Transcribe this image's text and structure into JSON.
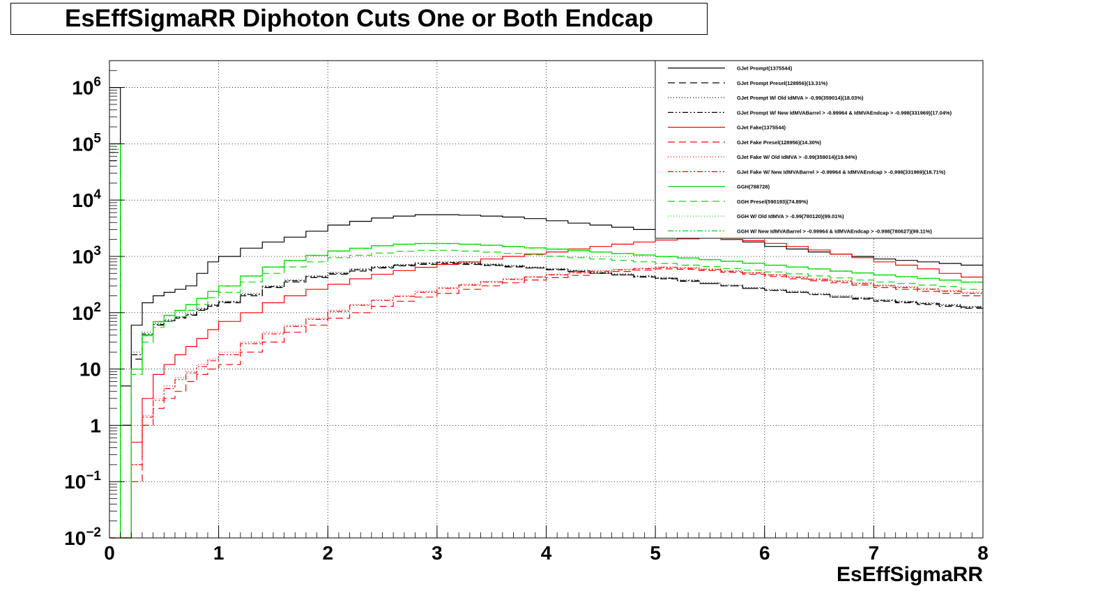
{
  "chart_data": {
    "type": "line",
    "title": "EsEffSigmaRR Diphoton Cuts One or Both Endcap",
    "xlabel": "EsEffSigmaRR",
    "ylabel": "",
    "xlim": [
      0,
      8
    ],
    "ylim": [
      0.01,
      3000000
    ],
    "yscale": "log",
    "grid": true,
    "legend_position": "top-right",
    "x_ticks": [
      "0",
      "1",
      "2",
      "3",
      "4",
      "5",
      "6",
      "7",
      "8"
    ],
    "y_ticks": [
      {
        "value": 1000000,
        "base": "10",
        "exp": "6"
      },
      {
        "value": 100000,
        "base": "10",
        "exp": "5"
      },
      {
        "value": 10000,
        "base": "10",
        "exp": "4"
      },
      {
        "value": 1000,
        "base": "10",
        "exp": "3"
      },
      {
        "value": 100,
        "base": "10",
        "exp": "2"
      },
      {
        "value": 10,
        "base": "10",
        "exp": ""
      },
      {
        "value": 1,
        "base": "1",
        "exp": ""
      },
      {
        "value": 0.1,
        "base": "10",
        "exp": "−1"
      },
      {
        "value": 0.01,
        "base": "10",
        "exp": "−2"
      }
    ],
    "x": [
      0.0,
      0.1,
      0.2,
      0.3,
      0.4,
      0.5,
      0.6,
      0.7,
      0.8,
      0.9,
      1.0,
      1.2,
      1.4,
      1.6,
      1.8,
      2.0,
      2.2,
      2.4,
      2.6,
      2.8,
      3.0,
      3.2,
      3.4,
      3.6,
      3.8,
      4.0,
      4.2,
      4.4,
      4.6,
      4.8,
      5.0,
      5.2,
      5.4,
      5.6,
      5.8,
      6.0,
      6.2,
      6.4,
      6.6,
      6.8,
      7.0,
      7.2,
      7.4,
      7.6,
      7.8,
      8.0
    ],
    "series": [
      {
        "name": "GJet Prompt(1375544)",
        "color": "#000000",
        "dash": "solid",
        "values": [
          1000000,
          5,
          60,
          150,
          200,
          230,
          260,
          300,
          500,
          800,
          1000,
          1400,
          1800,
          2200,
          2800,
          3600,
          4200,
          4800,
          5200,
          5500,
          5500,
          5400,
          5200,
          5000,
          4700,
          4300,
          3900,
          3600,
          3300,
          3000,
          2800,
          2500,
          2200,
          2000,
          1800,
          1500,
          1350,
          1200,
          1100,
          1000,
          900,
          850,
          800,
          750,
          700,
          650
        ]
      },
      {
        "name": "GJet Prompt Presel(128956)(13.31%)",
        "color": "#000000",
        "dash": "10,6",
        "values": [
          50000,
          1,
          15,
          40,
          60,
          70,
          80,
          90,
          110,
          130,
          150,
          200,
          280,
          350,
          420,
          480,
          550,
          620,
          680,
          720,
          750,
          720,
          690,
          650,
          620,
          580,
          540,
          500,
          470,
          430,
          400,
          360,
          330,
          300,
          270,
          250,
          230,
          210,
          190,
          175,
          160,
          150,
          140,
          130,
          120,
          110
        ]
      },
      {
        "name": "GJet Prompt W/ Old IdMVA > -0.99(359014)(18.03%)",
        "color": "#000000",
        "dash": "1,3",
        "values": [
          80000,
          1,
          20,
          45,
          65,
          75,
          85,
          95,
          120,
          140,
          160,
          220,
          300,
          380,
          450,
          520,
          600,
          660,
          720,
          770,
          800,
          770,
          730,
          690,
          650,
          610,
          570,
          530,
          490,
          450,
          420,
          380,
          340,
          310,
          280,
          260,
          240,
          220,
          200,
          185,
          170,
          160,
          150,
          140,
          130,
          120
        ]
      },
      {
        "name": "GJet Prompt W/ New IdMVABarrel > -0.99964 & IdMVAEndcap > -0.998(331969)(17.04%)",
        "color": "#000000",
        "dash": "8,3,2,3,2,3",
        "values": [
          70000,
          1,
          18,
          42,
          62,
          72,
          82,
          92,
          115,
          135,
          155,
          210,
          290,
          370,
          440,
          500,
          580,
          640,
          700,
          750,
          780,
          750,
          710,
          670,
          630,
          590,
          550,
          510,
          470,
          440,
          410,
          370,
          330,
          300,
          270,
          250,
          230,
          210,
          190,
          180,
          165,
          155,
          145,
          135,
          125,
          115
        ]
      },
      {
        "name": "GJet Fake(1375544)",
        "color": "#ff0000",
        "dash": "solid",
        "values": [
          0.01,
          0.01,
          0.5,
          3,
          8,
          12,
          18,
          25,
          35,
          50,
          70,
          100,
          150,
          200,
          260,
          320,
          400,
          480,
          560,
          640,
          720,
          800,
          900,
          1000,
          1100,
          1200,
          1350,
          1500,
          1650,
          1800,
          1950,
          2050,
          2100,
          2000,
          1900,
          1700,
          1500,
          1300,
          1100,
          950,
          800,
          700,
          600,
          500,
          430,
          380
        ]
      },
      {
        "name": "GJet Fake Presel(128956)(14.30%)",
        "color": "#ff0000",
        "dash": "10,6",
        "values": [
          0.01,
          0.01,
          0.1,
          1,
          2,
          3,
          4,
          6,
          8,
          10,
          12,
          20,
          30,
          45,
          60,
          80,
          100,
          130,
          160,
          190,
          220,
          260,
          300,
          340,
          380,
          420,
          460,
          500,
          540,
          570,
          600,
          590,
          560,
          520,
          480,
          440,
          400,
          370,
          340,
          310,
          280,
          260,
          240,
          220,
          200,
          180
        ]
      },
      {
        "name": "GJet Fake W/ Old IdMVA > -0.99(359014)(19.94%)",
        "color": "#ff0000",
        "dash": "1,3",
        "values": [
          0.01,
          0.01,
          0.2,
          1.5,
          3,
          5,
          7,
          9,
          12,
          15,
          20,
          30,
          45,
          60,
          80,
          110,
          140,
          170,
          200,
          240,
          280,
          320,
          360,
          400,
          440,
          480,
          520,
          560,
          590,
          620,
          650,
          630,
          600,
          560,
          520,
          480,
          440,
          400,
          370,
          340,
          310,
          290,
          270,
          250,
          230,
          210
        ]
      },
      {
        "name": "GJet Fake W/ New IdMVABarrel > -0.99964 & IdMVAEndcap > -0.998(331969)(18.71%)",
        "color": "#ff0000",
        "dash": "8,3,2,3,2,3",
        "values": [
          0.01,
          0.01,
          0.2,
          1.4,
          2.8,
          4.5,
          6.5,
          8.5,
          11,
          14,
          18,
          28,
          42,
          57,
          76,
          105,
          135,
          165,
          195,
          230,
          270,
          310,
          350,
          390,
          430,
          470,
          510,
          545,
          575,
          605,
          635,
          615,
          585,
          545,
          505,
          465,
          425,
          390,
          360,
          330,
          300,
          280,
          260,
          240,
          220,
          200
        ]
      },
      {
        "name": "GGH(788728)",
        "color": "#00dd00",
        "dash": "solid",
        "values": [
          100000,
          0.01,
          10,
          40,
          70,
          90,
          110,
          140,
          180,
          240,
          300,
          450,
          650,
          850,
          1050,
          1250,
          1400,
          1550,
          1650,
          1700,
          1700,
          1650,
          1580,
          1500,
          1420,
          1350,
          1270,
          1200,
          1130,
          1060,
          1000,
          940,
          880,
          820,
          760,
          700,
          650,
          600,
          550,
          510,
          470,
          440,
          410,
          380,
          350,
          320
        ]
      },
      {
        "name": "GGH Presel(590193)(74.89%)",
        "color": "#00dd00",
        "dash": "10,6",
        "values": [
          70000,
          0.01,
          8,
          30,
          55,
          70,
          85,
          110,
          140,
          185,
          230,
          350,
          500,
          650,
          800,
          950,
          1050,
          1150,
          1230,
          1280,
          1280,
          1240,
          1190,
          1130,
          1070,
          1010,
          950,
          900,
          850,
          800,
          750,
          700,
          660,
          610,
          570,
          530,
          490,
          450,
          415,
          380,
          350,
          330,
          310,
          290,
          260,
          240
        ]
      },
      {
        "name": "GGH W/ Old IdMVA > -0.99(780120)(99.01%)",
        "color": "#00dd00",
        "dash": "1,3",
        "values": [
          99000,
          0.01,
          10,
          39,
          69,
          89,
          109,
          138,
          178,
          237,
          297,
          445,
          643,
          841,
          1040,
          1238,
          1386,
          1535,
          1634,
          1683,
          1683,
          1634,
          1564,
          1485,
          1406,
          1337,
          1257,
          1188,
          1119,
          1049,
          990,
          931,
          871,
          812,
          752,
          693,
          644,
          594,
          545,
          505,
          465,
          436,
          406,
          376,
          347,
          317
        ]
      },
      {
        "name": "GGH W/ New IdMVABarrel > -0.99964 & IdMVAEndcap > -0.998(780627)(99.11%)",
        "color": "#00dd00",
        "dash": "8,3,2,3,2,3",
        "values": [
          99100,
          0.01,
          10,
          39,
          69,
          89,
          109,
          139,
          178,
          238,
          297,
          446,
          644,
          842,
          1041,
          1239,
          1388,
          1536,
          1635,
          1685,
          1685,
          1635,
          1566,
          1487,
          1407,
          1338,
          1259,
          1189,
          1120,
          1051,
          991,
          932,
          872,
          813,
          753,
          694,
          644,
          595,
          545,
          505,
          466,
          436,
          406,
          377,
          347,
          317
        ]
      }
    ]
  }
}
